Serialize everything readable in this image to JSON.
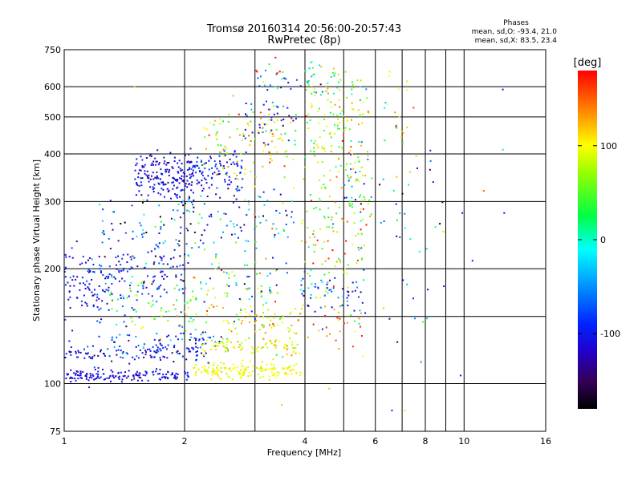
{
  "chart_data": {
    "type": "scatter",
    "title": "Tromsø 20160314 20:56:00-20:57:43",
    "subtitle": "RwPretec (8p)",
    "xlabel": "Frequency [MHz]",
    "ylabel": "Stationary phase Virtual Height [km]",
    "x_scale": "log",
    "y_scale": "log",
    "xlim": [
      1,
      16
    ],
    "ylim": [
      75,
      750
    ],
    "x_ticks": [
      1,
      2,
      4,
      6,
      8,
      10,
      16
    ],
    "x_tick_labels": [
      "1",
      "2",
      "4",
      "6",
      "8",
      "10",
      "16"
    ],
    "x_minor_ticks": [
      3,
      5,
      7,
      9
    ],
    "y_ticks": [
      75,
      100,
      200,
      300,
      400,
      500,
      600,
      750
    ],
    "y_tick_labels": [
      "75",
      "100",
      "200",
      "300",
      "400",
      "500",
      "600",
      "750"
    ],
    "y_minor_ticks": [
      150
    ],
    "grid": true,
    "stats": {
      "heading": "Phases",
      "o_line": "mean, sd,O: -93.4, 21.0",
      "x_line": "mean, sd,X: 83.5, 23.4"
    },
    "colorbar": {
      "label": "[deg]",
      "range": [
        -180,
        180
      ],
      "ticks": [
        100,
        0,
        -100
      ],
      "tick_labels": [
        "100",
        "0",
        "-100"
      ],
      "colormap": "rainbow"
    },
    "clusters": [
      {
        "fmin": 1.0,
        "fmax": 2.05,
        "h": 105,
        "hsd": 2,
        "phase": -110,
        "psd": 15,
        "n": 150
      },
      {
        "fmin": 2.1,
        "fmax": 3.9,
        "h": 108,
        "hsd": 2.5,
        "phase": 100,
        "psd": 10,
        "n": 150
      },
      {
        "fmin": 1.0,
        "fmax": 2.3,
        "h": 120,
        "hsd": 3,
        "phase": -100,
        "psd": 25,
        "n": 110
      },
      {
        "fmin": 1.3,
        "fmax": 2.5,
        "h": 130,
        "hsd": 4,
        "phase": -90,
        "psd": 40,
        "n": 60
      },
      {
        "fmin": 2.2,
        "fmax": 3.9,
        "h": 125,
        "hsd": 3,
        "phase": 90,
        "psd": 25,
        "n": 90
      },
      {
        "fmin": 1.0,
        "fmax": 2.0,
        "h": 190,
        "hsd": 18,
        "phase": -100,
        "psd": 25,
        "n": 160
      },
      {
        "fmin": 1.0,
        "fmax": 1.5,
        "h": 165,
        "hsd": 30,
        "phase": -100,
        "psd": 20,
        "n": 50
      },
      {
        "fmin": 1.2,
        "fmax": 2.1,
        "h": 240,
        "hsd": 35,
        "phase": -80,
        "psd": 60,
        "n": 90
      },
      {
        "fmin": 1.3,
        "fmax": 2.2,
        "h": 160,
        "hsd": 12,
        "phase": 60,
        "psd": 40,
        "n": 60
      },
      {
        "fmin": 2.0,
        "fmax": 3.5,
        "h": 175,
        "hsd": 15,
        "phase": 20,
        "psd": 80,
        "n": 80
      },
      {
        "fmin": 2.5,
        "fmax": 3.9,
        "h": 145,
        "hsd": 6,
        "phase": 100,
        "psd": 25,
        "n": 60
      },
      {
        "fmin": 1.5,
        "fmax": 2.1,
        "h": 350,
        "hsd": 25,
        "phase": -110,
        "psd": 15,
        "n": 170
      },
      {
        "fmin": 2.0,
        "fmax": 2.8,
        "h": 355,
        "hsd": 25,
        "phase": -100,
        "psd": 20,
        "n": 120
      },
      {
        "fmin": 2.0,
        "fmax": 3.8,
        "h": 255,
        "hsd": 40,
        "phase": -50,
        "psd": 70,
        "n": 110
      },
      {
        "fmin": 2.2,
        "fmax": 3.8,
        "h": 420,
        "hsd": 55,
        "phase": 100,
        "psd": 35,
        "n": 110
      },
      {
        "fmin": 2.8,
        "fmax": 3.8,
        "h": 510,
        "hsd": 50,
        "phase": -90,
        "psd": 30,
        "n": 40
      },
      {
        "fmin": 3.9,
        "fmax": 5.7,
        "h": 250,
        "hsd": 40,
        "phase": 80,
        "psd": 60,
        "n": 100
      },
      {
        "fmin": 3.9,
        "fmax": 5.7,
        "h": 175,
        "hsd": 12,
        "phase": -70,
        "psd": 40,
        "n": 60
      },
      {
        "fmin": 4.0,
        "fmax": 5.8,
        "h": 430,
        "hsd": 70,
        "phase": 90,
        "psd": 40,
        "n": 110
      },
      {
        "fmin": 4.0,
        "fmax": 5.8,
        "h": 600,
        "hsd": 40,
        "phase": 60,
        "psd": 50,
        "n": 40
      },
      {
        "fmin": 5.0,
        "fmax": 5.9,
        "h": 320,
        "hsd": 50,
        "phase": -20,
        "psd": 80,
        "n": 40
      },
      {
        "fmin": 4.0,
        "fmax": 5.6,
        "h": 140,
        "hsd": 10,
        "phase": 120,
        "psd": 40,
        "n": 30
      },
      {
        "fmin": 3.0,
        "fmax": 5.0,
        "h": 620,
        "hsd": 60,
        "phase": 30,
        "psd": 100,
        "n": 50
      },
      {
        "fmin": 6.0,
        "fmax": 9.0,
        "h": 250,
        "hsd": 80,
        "phase": -60,
        "psd": 80,
        "n": 40
      },
      {
        "fmin": 6.2,
        "fmax": 7.5,
        "h": 500,
        "hsd": 80,
        "phase": 100,
        "psd": 60,
        "n": 20
      }
    ],
    "sparse_points": [
      [
        1.5,
        600,
        120
      ],
      [
        6.6,
        85,
        -90
      ],
      [
        7.1,
        85,
        110
      ],
      [
        9.8,
        105,
        -110
      ],
      [
        12.5,
        590,
        -100
      ],
      [
        12.6,
        280,
        -100
      ],
      [
        10.5,
        210,
        -100
      ],
      [
        9.9,
        280,
        -110
      ],
      [
        8.9,
        250,
        90
      ],
      [
        12.5,
        410,
        30
      ],
      [
        11.2,
        320,
        150
      ],
      [
        4.6,
        97,
        120
      ],
      [
        3.5,
        88,
        120
      ],
      [
        6.5,
        640,
        100
      ],
      [
        7.2,
        620,
        110
      ],
      [
        8.9,
        180,
        -100
      ]
    ]
  }
}
